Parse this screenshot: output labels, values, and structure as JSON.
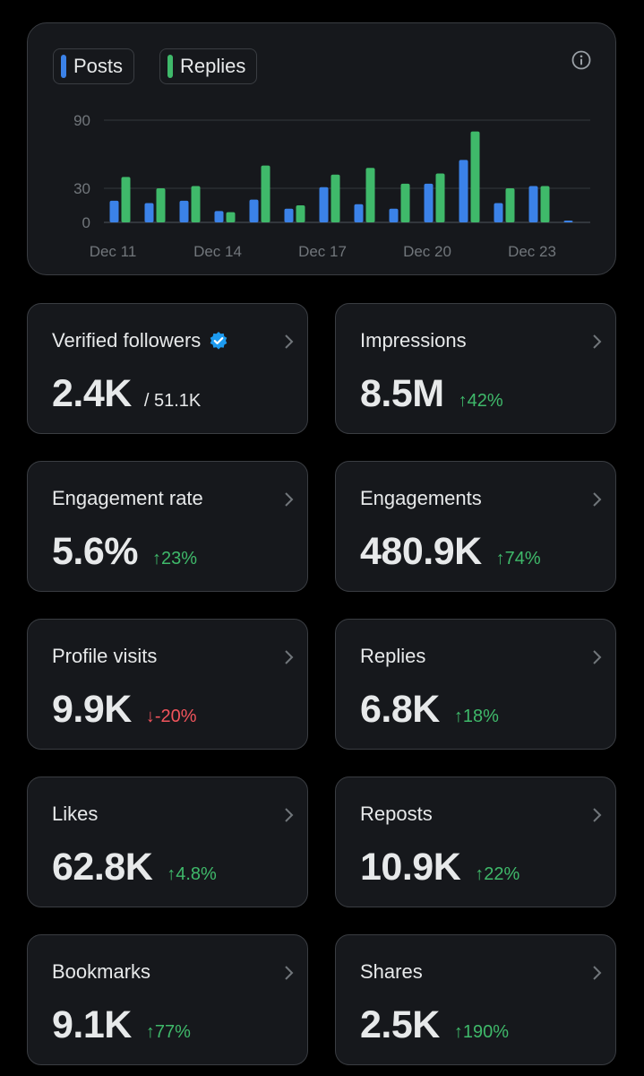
{
  "chart": {
    "legend": [
      {
        "label": "Posts",
        "color": "#3b82e8"
      },
      {
        "label": "Replies",
        "color": "#3fb96a"
      }
    ]
  },
  "chart_data": {
    "type": "bar",
    "categories": [
      "Dec 11",
      "Dec 12",
      "Dec 13",
      "Dec 14",
      "Dec 15",
      "Dec 16",
      "Dec 17",
      "Dec 18",
      "Dec 19",
      "Dec 20",
      "Dec 21",
      "Dec 22",
      "Dec 23",
      "Dec 24"
    ],
    "x_tick_labels": [
      "Dec 11",
      "Dec 14",
      "Dec 17",
      "Dec 20",
      "Dec 23"
    ],
    "series": [
      {
        "name": "Posts",
        "color": "#3b82e8",
        "values": [
          19,
          17,
          19,
          10,
          20,
          12,
          31,
          16,
          12,
          34,
          55,
          17,
          32,
          1
        ]
      },
      {
        "name": "Replies",
        "color": "#3fb96a",
        "values": [
          40,
          30,
          32,
          9,
          50,
          15,
          42,
          48,
          34,
          43,
          80,
          30,
          32,
          0
        ]
      }
    ],
    "y_ticks": [
      0,
      30,
      90
    ],
    "ylim": [
      0,
      90
    ],
    "grid": true,
    "legend_position": "top-left"
  },
  "stats": [
    {
      "label": "Verified followers",
      "value": "2.4K",
      "total": "/ 51.1K",
      "verified": true
    },
    {
      "label": "Impressions",
      "value": "8.5M",
      "change": "42%",
      "direction": "up"
    },
    {
      "label": "Engagement rate",
      "value": "5.6%",
      "change": "23%",
      "direction": "up"
    },
    {
      "label": "Engagements",
      "value": "480.9K",
      "change": "74%",
      "direction": "up"
    },
    {
      "label": "Profile visits",
      "value": "9.9K",
      "change": "-20%",
      "direction": "down"
    },
    {
      "label": "Replies",
      "value": "6.8K",
      "change": "18%",
      "direction": "up"
    },
    {
      "label": "Likes",
      "value": "62.8K",
      "change": "4.8%",
      "direction": "up"
    },
    {
      "label": "Reposts",
      "value": "10.9K",
      "change": "22%",
      "direction": "up"
    },
    {
      "label": "Bookmarks",
      "value": "9.1K",
      "change": "77%",
      "direction": "up"
    },
    {
      "label": "Shares",
      "value": "2.5K",
      "change": "190%",
      "direction": "up"
    }
  ],
  "icons": {
    "verified_color": "#1d9bf0",
    "up_arrow": "↑",
    "down_arrow": "↓"
  }
}
